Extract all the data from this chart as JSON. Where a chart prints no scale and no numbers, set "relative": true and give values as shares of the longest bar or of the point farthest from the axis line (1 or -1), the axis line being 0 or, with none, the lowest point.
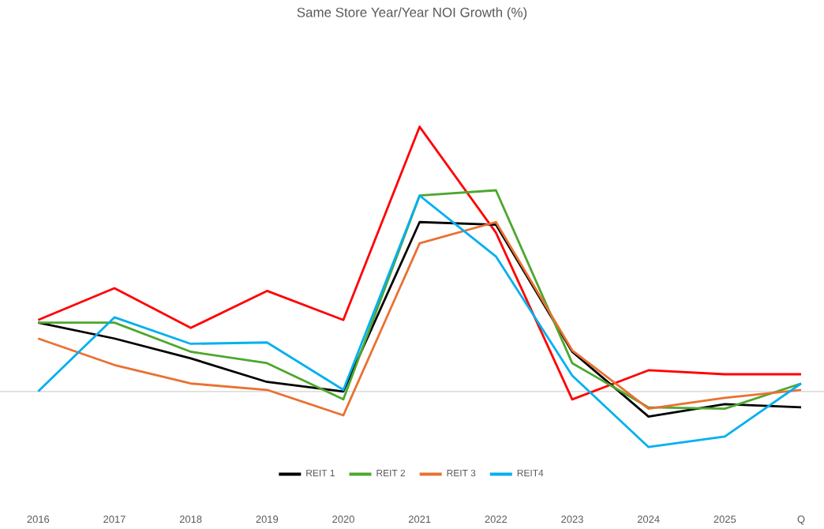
{
  "chart_data": {
    "type": "line",
    "title": "Same Store Year/Year NOI Growth (%)",
    "relative": true,
    "categories": [
      "2016",
      "2017",
      "2018",
      "2019",
      "2020",
      "2021",
      "2022",
      "2023",
      "2024",
      "2025",
      "Q"
    ],
    "series": [
      {
        "color": "#ff0000",
        "values": [
          0.27,
          0.39,
          0.24,
          0.38,
          0.27,
          1,
          0.6,
          -0.03,
          0.08,
          0.065,
          0.065
        ]
      },
      {
        "name": "REIT 1",
        "color": "#000000",
        "values": [
          0.26,
          0.2,
          0.125,
          0.036,
          0,
          0.64,
          0.63,
          0.15,
          -0.095,
          -0.048,
          -0.06
        ]
      },
      {
        "name": "REIT 2",
        "color": "#4ea72e",
        "values": [
          0.26,
          0.26,
          0.15,
          0.107,
          -0.03,
          0.74,
          0.76,
          0.107,
          -0.06,
          -0.065,
          0.03
        ]
      },
      {
        "name": "REIT 3",
        "color": "#e97132",
        "values": [
          0.2,
          0.1,
          0.03,
          0.006,
          -0.09,
          0.56,
          0.64,
          0.155,
          -0.065,
          -0.024,
          0.006
        ]
      },
      {
        "name": "REIT4",
        "color": "#00b0f0",
        "values": [
          0,
          0.28,
          0.18,
          0.185,
          0.006,
          0.74,
          0.51,
          0.06,
          -0.21,
          -0.17,
          0.03
        ]
      }
    ],
    "legend": "bottom",
    "grid": false,
    "marker": "none",
    "line_style": "solid"
  }
}
